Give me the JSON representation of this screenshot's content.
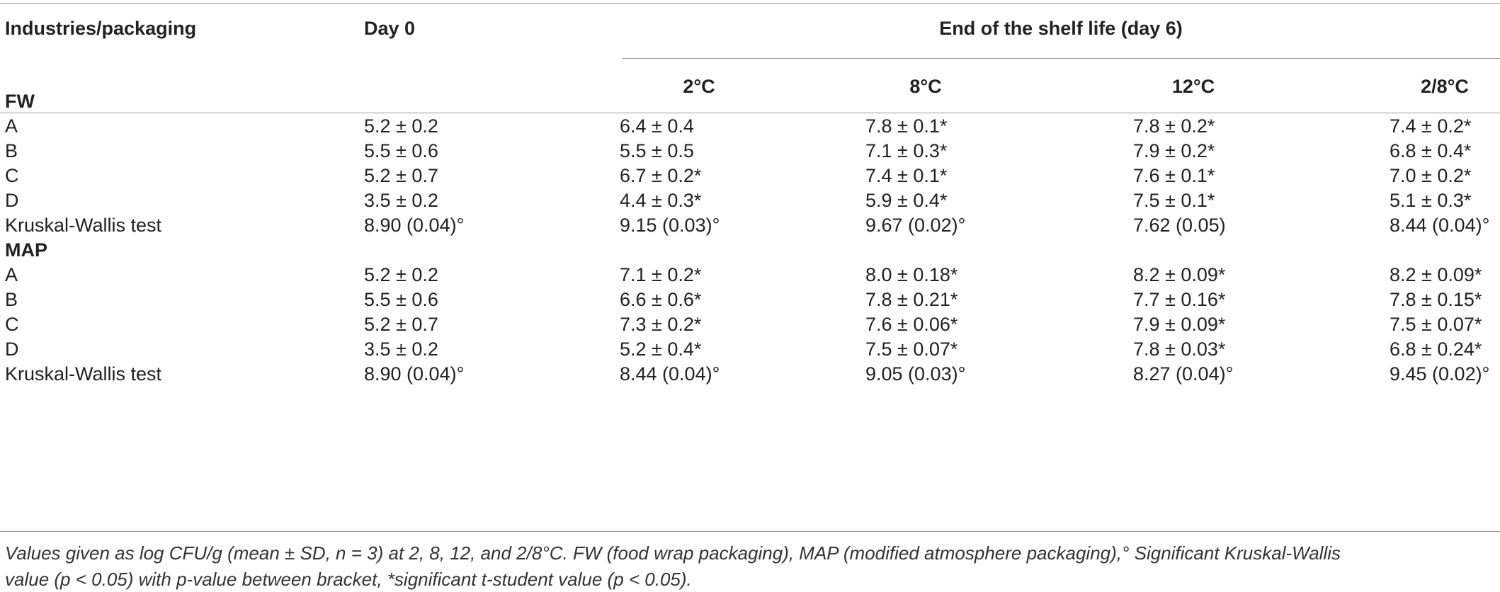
{
  "header": {
    "col_label": "Industries/packaging",
    "col_day0": "Day 0",
    "span_label": "End of the shelf life (day 6)",
    "temps": [
      "2°C",
      "8°C",
      "12°C",
      "2/8°C"
    ]
  },
  "sections": [
    {
      "name": "FW",
      "rows": [
        {
          "label": "A",
          "day0": "5.2 ± 0.2",
          "t2": "6.4 ± 0.4",
          "t8": "7.8 ± 0.1*",
          "t12": "7.8 ± 0.2*",
          "t28": "7.4 ± 0.2*"
        },
        {
          "label": "B",
          "day0": "5.5 ± 0.6",
          "t2": "5.5 ± 0.5",
          "t8": "7.1 ± 0.3*",
          "t12": "7.9 ± 0.2*",
          "t28": "6.8 ± 0.4*"
        },
        {
          "label": "C",
          "day0": "5.2 ± 0.7",
          "t2": "6.7 ± 0.2*",
          "t8": "7.4 ± 0.1*",
          "t12": "7.6 ± 0.1*",
          "t28": "7.0 ± 0.2*"
        },
        {
          "label": "D",
          "day0": "3.5 ± 0.2",
          "t2": "4.4 ± 0.3*",
          "t8": "5.9 ± 0.4*",
          "t12": "7.5 ± 0.1*",
          "t28": "5.1 ± 0.3*"
        },
        {
          "label": "Kruskal-Wallis test",
          "day0": "8.90 (0.04)°",
          "t2": "9.15 (0.03)°",
          "t8": "9.67 (0.02)°",
          "t12": "7.62 (0.05)",
          "t28": "8.44 (0.04)°"
        }
      ]
    },
    {
      "name": "MAP",
      "rows": [
        {
          "label": "A",
          "day0": "5.2 ± 0.2",
          "t2": "7.1 ± 0.2*",
          "t8": "8.0 ± 0.18*",
          "t12": "8.2 ± 0.09*",
          "t28": "8.2 ± 0.09*"
        },
        {
          "label": "B",
          "day0": "5.5 ± 0.6",
          "t2": "6.6 ± 0.6*",
          "t8": "7.8 ± 0.21*",
          "t12": "7.7 ± 0.16*",
          "t28": "7.8 ± 0.15*"
        },
        {
          "label": "C",
          "day0": "5.2 ± 0.7",
          "t2": "7.3 ± 0.2*",
          "t8": "7.6 ± 0.06*",
          "t12": "7.9 ± 0.09*",
          "t28": "7.5 ± 0.07*"
        },
        {
          "label": "D",
          "day0": "3.5 ± 0.2",
          "t2": "5.2 ± 0.4*",
          "t8": "7.5 ± 0.07*",
          "t12": "7.8 ± 0.03*",
          "t28": "6.8 ± 0.24*"
        },
        {
          "label": "Kruskal-Wallis test",
          "day0": "8.90 (0.04)°",
          "t2": "8.44 (0.04)°",
          "t8": "9.05 (0.03)°",
          "t12": "8.27 (0.04)°",
          "t28": "9.45 (0.02)°"
        }
      ]
    }
  ],
  "footnote": {
    "line1": "Values given as log CFU/g (mean ± SD, n = 3) at 2, 8, 12, and 2/8°C. FW (food wrap packaging), MAP (modified atmosphere packaging),° Significant Kruskal-Wallis",
    "line2": "value (p < 0.05) with p-value between bracket, *significant t-student value (p < 0.05)."
  }
}
